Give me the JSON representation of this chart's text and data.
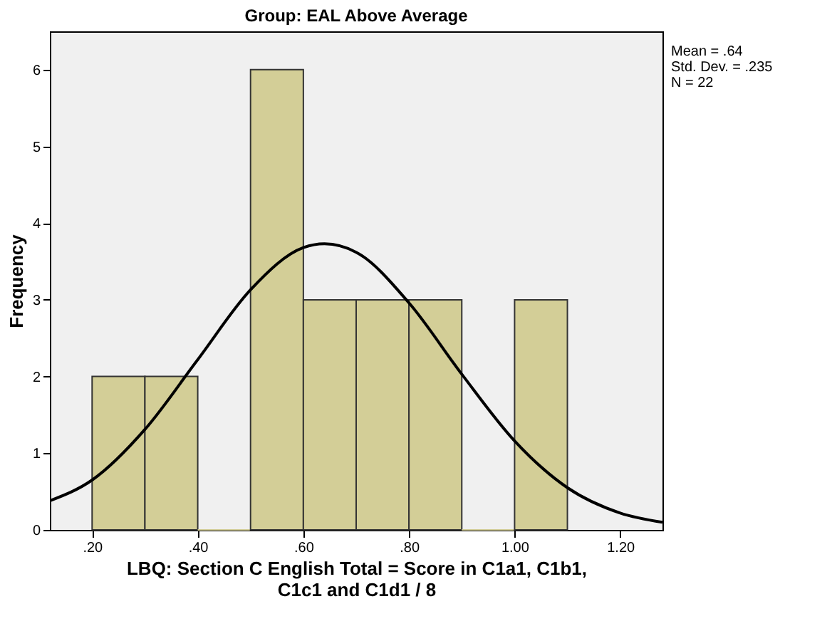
{
  "chart_data": {
    "type": "histogram",
    "title": "Group: EAL Above Average",
    "xlabel": "LBQ: Section C English Total = Score in C1a1, C1b1,\nC1c1 and C1d1 / 8",
    "ylabel": "Frequency",
    "bins": [
      0.2,
      0.3,
      0.4,
      0.5,
      0.6,
      0.7,
      0.8,
      0.9,
      1.0,
      1.1
    ],
    "values": [
      2,
      2,
      0,
      6,
      3,
      3,
      3,
      0,
      3
    ],
    "color": "#d3ce97",
    "series": [
      {
        "type": "line",
        "color": "#000000",
        "x": [
          0.12,
          0.2,
          0.3,
          0.4,
          0.5,
          0.6,
          0.64,
          0.7,
          0.8,
          0.9,
          1.0,
          1.1,
          1.2,
          1.28
        ],
        "values": [
          0.38,
          0.65,
          1.31,
          2.22,
          3.13,
          3.68,
          3.73,
          3.62,
          2.96,
          2.03,
          1.16,
          0.55,
          0.22,
          0.1
        ]
      }
    ],
    "xlim": [
      0.12,
      1.28
    ],
    "xticks": [
      {
        "value": 0.2,
        "label": ".20"
      },
      {
        "value": 0.4,
        "label": ".40"
      },
      {
        "value": 0.6,
        "label": ".60"
      },
      {
        "value": 0.8,
        "label": ".80"
      },
      {
        "value": 1.0,
        "label": "1.00"
      },
      {
        "value": 1.2,
        "label": "1.20"
      }
    ],
    "ylim": [
      0,
      6.5
    ],
    "yticks": [
      0,
      1,
      2,
      3,
      4,
      5,
      6
    ],
    "annotations": [
      "Mean = .64",
      "Std. Dev. = .235",
      "N = 22"
    ],
    "grid": false
  }
}
